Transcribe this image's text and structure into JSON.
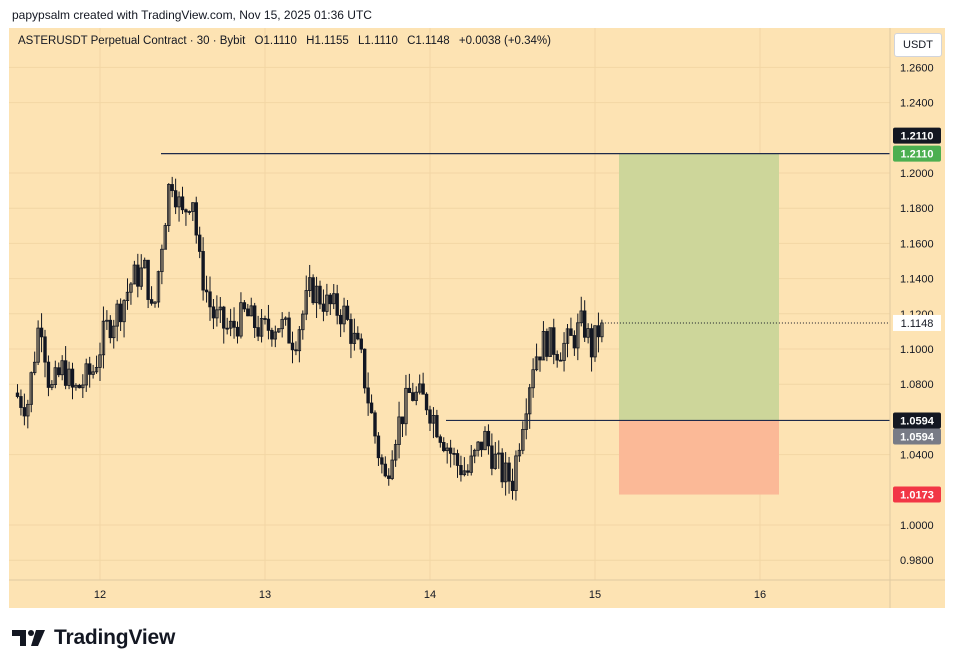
{
  "caption": "papypsalm created with TradingView.com, Nov 15, 2025 01:36 UTC",
  "legend": {
    "title": "ASTERUSDT Perpetual Contract · 30 · Bybit",
    "open": "O1.1110",
    "high": "H1.1155",
    "low": "L1.1110",
    "close": "C1.1148",
    "change": "+0.0038 (+0.34%)"
  },
  "currency_button": "USDT",
  "brand": "TradingView",
  "colors": {
    "background": "#fde3b3",
    "candle": "#131722",
    "profit_zone": "#cdd69a",
    "loss_zone": "#fbb997",
    "target_label": "#4caf50",
    "stop_label": "#f23645",
    "entry_label": "#787b86",
    "line_label": "#131722"
  },
  "chart_data": {
    "type": "candlestick",
    "x_ticks": [
      "12",
      "13",
      "14",
      "15",
      "16"
    ],
    "y_ticks": [
      "1.2600",
      "1.2400",
      "1.2000",
      "1.1800",
      "1.1600",
      "1.1400",
      "1.1200",
      "1.1000",
      "1.0800",
      "1.0400",
      "1.0000",
      "0.9800"
    ],
    "y_range": [
      0.97,
      1.275
    ],
    "last_price": "1.1148",
    "horizontal_lines": [
      {
        "price": 1.211,
        "label": "1.2110"
      },
      {
        "price": 1.0594,
        "label": "1.0594"
      }
    ],
    "long_position": {
      "target": 1.211,
      "target_label": "1.2110",
      "entry": 1.0594,
      "entry_label": "1.0594",
      "stop": 1.0173,
      "stop_label": "1.0173"
    },
    "price_path": [
      {
        "day": 11.5,
        "price": 1.075
      },
      {
        "day": 11.58,
        "price": 1.068
      },
      {
        "day": 11.66,
        "price": 1.12
      },
      {
        "day": 11.72,
        "price": 1.075
      },
      {
        "day": 11.8,
        "price": 1.09
      },
      {
        "day": 11.86,
        "price": 1.075
      },
      {
        "day": 11.98,
        "price": 1.088
      },
      {
        "day": 12.05,
        "price": 1.11
      },
      {
        "day": 12.15,
        "price": 1.125
      },
      {
        "day": 12.22,
        "price": 1.14
      },
      {
        "day": 12.3,
        "price": 1.145
      },
      {
        "day": 12.34,
        "price": 1.115
      },
      {
        "day": 12.4,
        "price": 1.165
      },
      {
        "day": 12.45,
        "price": 1.2
      },
      {
        "day": 12.52,
        "price": 1.175
      },
      {
        "day": 12.58,
        "price": 1.19
      },
      {
        "day": 12.62,
        "price": 1.15
      },
      {
        "day": 12.7,
        "price": 1.12
      },
      {
        "day": 12.8,
        "price": 1.11
      },
      {
        "day": 12.9,
        "price": 1.12
      },
      {
        "day": 13.0,
        "price": 1.11
      },
      {
        "day": 13.1,
        "price": 1.115
      },
      {
        "day": 13.2,
        "price": 1.105
      },
      {
        "day": 13.3,
        "price": 1.135
      },
      {
        "day": 13.4,
        "price": 1.125
      },
      {
        "day": 13.5,
        "price": 1.12
      },
      {
        "day": 13.6,
        "price": 1.095
      },
      {
        "day": 13.7,
        "price": 1.045
      },
      {
        "day": 13.75,
        "price": 1.025
      },
      {
        "day": 13.8,
        "price": 1.05
      },
      {
        "day": 13.9,
        "price": 1.075
      },
      {
        "day": 14.0,
        "price": 1.07
      },
      {
        "day": 14.1,
        "price": 1.05
      },
      {
        "day": 14.18,
        "price": 1.035
      },
      {
        "day": 14.25,
        "price": 1.03
      },
      {
        "day": 14.35,
        "price": 1.05
      },
      {
        "day": 14.45,
        "price": 1.03
      },
      {
        "day": 14.52,
        "price": 1.025
      },
      {
        "day": 14.58,
        "price": 1.06
      },
      {
        "day": 14.65,
        "price": 1.095
      },
      {
        "day": 14.72,
        "price": 1.105
      },
      {
        "day": 14.8,
        "price": 1.1
      },
      {
        "day": 14.88,
        "price": 1.105
      },
      {
        "day": 14.95,
        "price": 1.115
      },
      {
        "day": 15.0,
        "price": 1.1
      },
      {
        "day": 15.06,
        "price": 1.1148
      }
    ]
  }
}
